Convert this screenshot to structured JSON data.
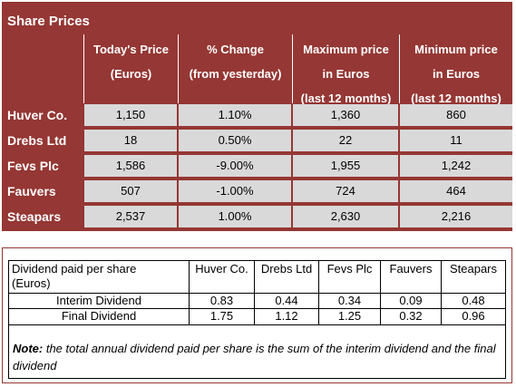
{
  "share_prices": {
    "title": "Share Prices",
    "headers": [
      [
        "Today's Price",
        "(Euros)"
      ],
      [
        "% Change",
        "(from yesterday)"
      ],
      [
        "Maximum price",
        "in Euros",
        "(last 12 months)"
      ],
      [
        "Minimum price",
        "in Euros",
        "(last 12 months)"
      ]
    ],
    "rows": [
      {
        "name": "Huver Co.",
        "price": "1,150",
        "change": "1.10%",
        "max": "1,360",
        "min": "860"
      },
      {
        "name": "Drebs Ltd",
        "price": "18",
        "change": "0.50%",
        "max": "22",
        "min": "11"
      },
      {
        "name": "Fevs Plc",
        "price": "1,586",
        "change": "-9.00%",
        "max": "1,955",
        "min": "1,242"
      },
      {
        "name": "Fauvers",
        "price": "507",
        "change": "-1.00%",
        "max": "724",
        "min": "464"
      },
      {
        "name": "Steapars",
        "price": "2,537",
        "change": "1.00%",
        "max": "2,630",
        "min": "2,216"
      }
    ]
  },
  "dividends": {
    "header_label": [
      "Dividend paid per share",
      "(Euros)"
    ],
    "companies": [
      "Huver Co.",
      "Drebs Ltd",
      "Fevs Plc",
      "Fauvers",
      "Steapars"
    ],
    "rows": [
      {
        "label": "Interim Dividend",
        "values": [
          "0.83",
          "0.44",
          "0.34",
          "0.09",
          "0.48"
        ]
      },
      {
        "label": "Final Dividend",
        "values": [
          "1.75",
          "1.12",
          "1.25",
          "0.32",
          "0.96"
        ]
      }
    ],
    "note_label": "Note:",
    "note_text": " the total annual dividend paid per share is the sum of the interim dividend and the final dividend"
  },
  "colors": {
    "header_bg": "#953734",
    "cell_bg": "#d9d9d9",
    "header_text": "#ffffff"
  }
}
